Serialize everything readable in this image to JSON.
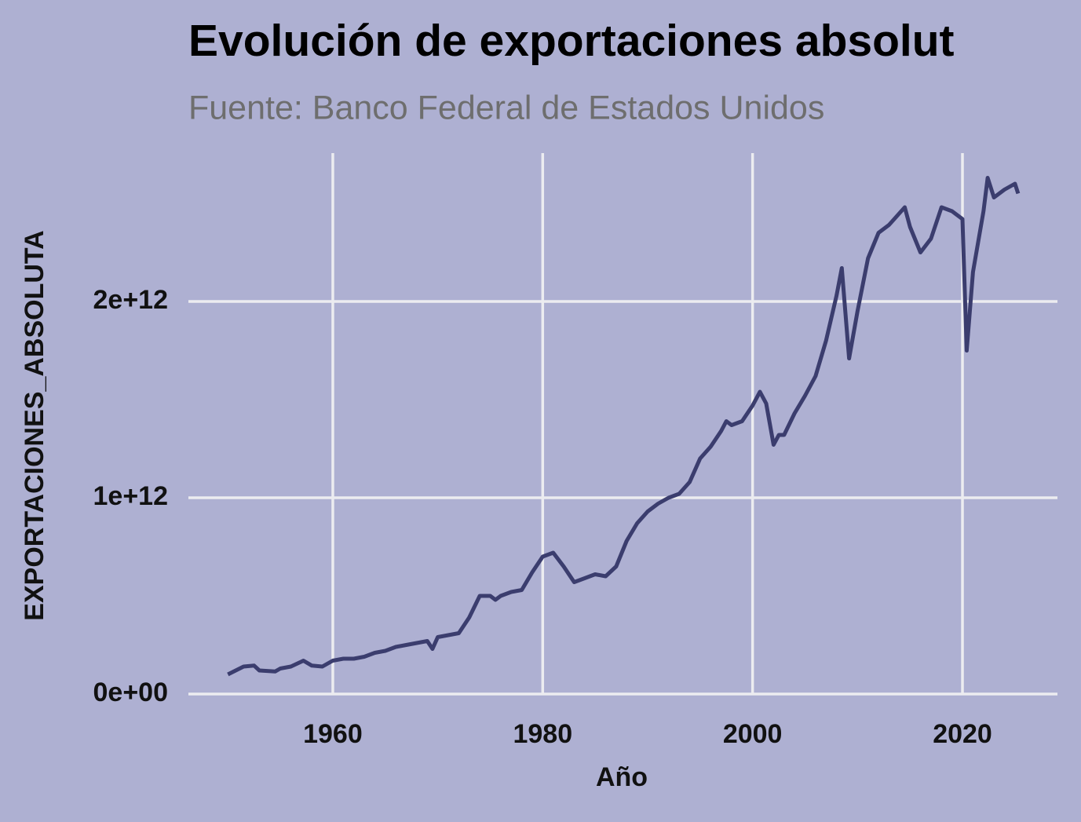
{
  "chart_data": {
    "type": "line",
    "title": "Evolución de exportaciones absolut",
    "subtitle": "Fuente: Banco Federal de Estados Unidos",
    "x_label": "Año",
    "y_label": "EXPORTACIONES_ABSOLUTA",
    "xlim": [
      1946.24,
      2029.05
    ],
    "ylim": [
      0,
      2756000000000.0
    ],
    "xticks": [
      1960,
      1980,
      2000,
      2020
    ],
    "yticks": [
      {
        "value": 0,
        "label": "0e+00"
      },
      {
        "value": 1000000000000.0,
        "label": "1e+12"
      },
      {
        "value": 2000000000000.0,
        "label": "2e+12"
      }
    ],
    "grid": true,
    "series": [
      {
        "color": "#3b3d6e",
        "x": [
          1950,
          1951.5,
          1952.5,
          1953,
          1954.5,
          1955,
          1956,
          1957.2,
          1958,
          1959,
          1960,
          1961,
          1962,
          1963,
          1964,
          1965,
          1966,
          1967,
          1968,
          1969,
          1969.5,
          1970,
          1971,
          1972,
          1973,
          1974,
          1975,
          1975.5,
          1976,
          1977,
          1978,
          1979,
          1980,
          1981,
          1982,
          1983,
          1984,
          1985,
          1986,
          1987,
          1988,
          1989,
          1990,
          1991,
          1992,
          1993,
          1994,
          1995,
          1996,
          1997,
          1997.5,
          1998,
          1999,
          2000,
          2000.7,
          2001.3,
          2002,
          2002.5,
          2003,
          2004,
          2005,
          2006,
          2007,
          2008,
          2008.5,
          2009.2,
          2010,
          2011,
          2012,
          2013,
          2014,
          2014.5,
          2015,
          2016,
          2017,
          2018,
          2019,
          2020,
          2020.4,
          2021,
          2022,
          2022.4,
          2023,
          2024,
          2025,
          2025.3
        ],
        "values": [
          100000000000.0,
          140000000000.0,
          145000000000.0,
          120000000000.0,
          115000000000.0,
          130000000000.0,
          140000000000.0,
          170000000000.0,
          145000000000.0,
          140000000000.0,
          170000000000.0,
          180000000000.0,
          180000000000.0,
          190000000000.0,
          210000000000.0,
          220000000000.0,
          240000000000.0,
          250000000000.0,
          260000000000.0,
          270000000000.0,
          230000000000.0,
          290000000000.0,
          300000000000.0,
          310000000000.0,
          390000000000.0,
          500000000000.0,
          500000000000.0,
          480000000000.0,
          500000000000.0,
          520000000000.0,
          530000000000.0,
          620000000000.0,
          700000000000.0,
          720000000000.0,
          650000000000.0,
          570000000000.0,
          590000000000.0,
          610000000000.0,
          600000000000.0,
          650000000000.0,
          780000000000.0,
          870000000000.0,
          930000000000.0,
          970000000000.0,
          1000000000000.0,
          1020000000000.0,
          1080000000000.0,
          1200000000000.0,
          1260000000000.0,
          1340000000000.0,
          1390000000000.0,
          1370000000000.0,
          1390000000000.0,
          1470000000000.0,
          1540000000000.0,
          1480000000000.0,
          1270000000000.0,
          1320000000000.0,
          1320000000000.0,
          1430000000000.0,
          1520000000000.0,
          1620000000000.0,
          1800000000000.0,
          2030000000000.0,
          2170000000000.0,
          1710000000000.0,
          1950000000000.0,
          2220000000000.0,
          2350000000000.0,
          2390000000000.0,
          2450000000000.0,
          2480000000000.0,
          2380000000000.0,
          2250000000000.0,
          2320000000000.0,
          2480000000000.0,
          2460000000000.0,
          2420000000000.0,
          1750000000000.0,
          2150000000000.0,
          2460000000000.0,
          2630000000000.0,
          2530000000000.0,
          2570000000000.0,
          2600000000000.0,
          2550000000000.0
        ]
      }
    ]
  }
}
